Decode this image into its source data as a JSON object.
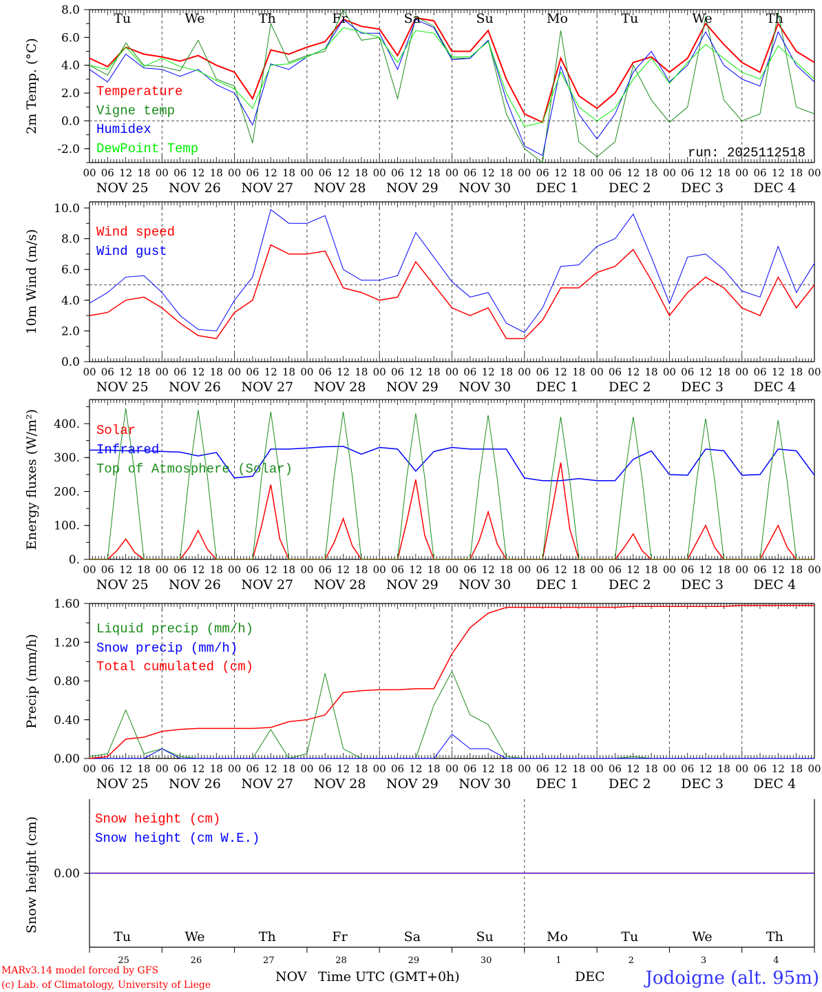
{
  "x_axis": {
    "days": [
      "NOV 25",
      "NOV 26",
      "NOV 27",
      "NOV 28",
      "NOV 29",
      "NOV 30",
      "DEC  1",
      "DEC  2",
      "DEC  3",
      "DEC  4"
    ],
    "day_names": [
      "Tu",
      "We",
      "Th",
      "Fr",
      "Sa",
      "Su",
      "Mo",
      "Tu",
      "We",
      "Th"
    ],
    "weekend_flags": [
      false,
      false,
      false,
      false,
      true,
      true,
      false,
      false,
      false,
      false
    ],
    "hour_ticks": [
      "00",
      "06",
      "12",
      "18"
    ],
    "final_hour_tick": "00",
    "day_numbers": [
      "25",
      "26",
      "27",
      "28",
      "29",
      "30",
      "1",
      "2",
      "3",
      "4"
    ],
    "month_labels": [
      "NOV",
      "DEC"
    ],
    "title": "Time UTC (GMT+0h)",
    "weekday_color": "#000000",
    "weekend_color": "#ff0000"
  },
  "run_label": "run: 2025112518",
  "footer": {
    "model": "MARv3.14 model forced by GFS",
    "credit": "(c) Lab. of Climatology, University of Liege",
    "location": "Jodoigne (alt. 95m)",
    "model_color": "#ff0000",
    "location_color": "#3333ff"
  },
  "chart_data": [
    {
      "type": "line",
      "ylabel": "2m Temp. (°C)",
      "ylim": [
        -3,
        8
      ],
      "yticks": [
        "8.0",
        "6.0",
        "4.0",
        "2.0",
        "0.0",
        "-2.0"
      ],
      "ytick_values": [
        8,
        6,
        4,
        2,
        0,
        -2
      ],
      "reference_line": 0,
      "x_start_hour": 0,
      "x_end_hour": 240,
      "series": [
        {
          "name": "Temperature",
          "color": "#ff0000",
          "width": 2,
          "step_hours": 6,
          "values": [
            4.5,
            3.9,
            5.3,
            4.8,
            4.6,
            4.3,
            4.7,
            4.0,
            3.5,
            1.6,
            5.1,
            4.8,
            5.3,
            5.7,
            7.3,
            6.8,
            6.6,
            4.7,
            7.4,
            7.2,
            5.0,
            5.0,
            6.5,
            3.0,
            0.5,
            -0.1,
            4.5,
            1.8,
            0.9,
            2.0,
            4.2,
            4.6,
            3.5,
            4.5,
            7.0,
            5.5,
            4.2,
            3.5,
            7.0,
            5.0,
            4.2
          ]
        },
        {
          "name": "Vigne temp",
          "color": "#1a8c1a",
          "width": 1,
          "step_hours": 6,
          "values": [
            4.0,
            3.3,
            5.6,
            4.0,
            3.9,
            3.6,
            5.8,
            3.0,
            2.5,
            -1.6,
            7.0,
            4.2,
            4.7,
            5.0,
            8.0,
            5.8,
            6.0,
            1.6,
            7.5,
            6.8,
            4.5,
            4.5,
            5.8,
            0.5,
            -2.0,
            -3.0,
            6.5,
            -1.5,
            -2.6,
            -1.5,
            4.0,
            1.5,
            -0.1,
            1.0,
            7.5,
            1.5,
            0.0,
            0.5,
            7.8,
            1.0,
            0.5
          ]
        },
        {
          "name": "Humidex",
          "color": "#0000ff",
          "width": 1,
          "step_hours": 6,
          "values": [
            3.7,
            2.8,
            4.8,
            3.8,
            3.7,
            3.2,
            3.7,
            2.6,
            2.0,
            -0.3,
            4.1,
            3.7,
            4.6,
            5.2,
            7.3,
            6.3,
            6.3,
            3.7,
            7.3,
            6.7,
            4.4,
            4.5,
            5.8,
            1.5,
            -1.8,
            -2.5,
            3.9,
            0.5,
            -1.3,
            0.5,
            3.5,
            5.0,
            2.8,
            4.0,
            6.4,
            4.0,
            3.0,
            2.5,
            6.4,
            4.0,
            2.8
          ]
        },
        {
          "name": "DewPoint Temp",
          "color": "#00ee00",
          "width": 1,
          "step_hours": 6,
          "values": [
            4.0,
            3.7,
            5.3,
            3.9,
            4.5,
            3.9,
            3.6,
            2.9,
            2.3,
            0.9,
            4.0,
            4.1,
            4.6,
            5.2,
            6.7,
            6.4,
            6.0,
            4.2,
            6.5,
            6.3,
            4.6,
            4.6,
            5.7,
            2.0,
            -0.4,
            -0.1,
            3.5,
            1.0,
            0.0,
            0.9,
            3.0,
            4.5,
            2.7,
            4.2,
            5.5,
            4.5,
            3.5,
            3.0,
            5.4,
            4.2,
            3.0
          ]
        }
      ]
    },
    {
      "type": "line",
      "ylabel": "10m Wind (m/s)",
      "ylim": [
        0,
        10.4
      ],
      "yticks": [
        "10.0",
        "8.0",
        "6.0",
        "4.0",
        "2.0",
        "0.0"
      ],
      "ytick_values": [
        10,
        8,
        6,
        4,
        2,
        0
      ],
      "reference_line": 5,
      "x_start_hour": 0,
      "x_end_hour": 240,
      "series": [
        {
          "name": "Wind speed",
          "color": "#ff0000",
          "width": 1.5,
          "step_hours": 6,
          "values": [
            3.0,
            3.2,
            4.0,
            4.2,
            3.5,
            2.5,
            1.7,
            1.5,
            3.2,
            4.0,
            7.6,
            7.0,
            7.0,
            7.2,
            4.8,
            4.5,
            4.0,
            4.2,
            6.5,
            5.0,
            3.5,
            3.0,
            3.5,
            1.5,
            1.5,
            2.7,
            4.8,
            4.8,
            5.8,
            6.2,
            7.3,
            5.3,
            3.0,
            4.5,
            5.5,
            4.8,
            3.5,
            3.0,
            5.5,
            3.5,
            5.0
          ]
        },
        {
          "name": "Wind gust",
          "color": "#0000ff",
          "width": 1,
          "step_hours": 6,
          "values": [
            3.8,
            4.5,
            5.5,
            5.6,
            4.5,
            3.0,
            2.1,
            2.0,
            4.0,
            5.5,
            9.9,
            9.0,
            9.0,
            9.5,
            6.0,
            5.3,
            5.3,
            5.6,
            8.4,
            6.8,
            5.2,
            4.2,
            4.5,
            2.5,
            1.9,
            3.5,
            6.2,
            6.3,
            7.5,
            8.0,
            9.6,
            6.8,
            3.8,
            6.8,
            7.0,
            6.0,
            4.6,
            4.2,
            7.5,
            4.5,
            6.4
          ]
        }
      ]
    },
    {
      "type": "line",
      "ylabel": "Energy fluxes (W/m²)",
      "ylim": [
        0,
        471
      ],
      "yticks": [
        "400.",
        "300.",
        "200.",
        "100.",
        "0."
      ],
      "ytick_values": [
        400,
        300,
        200,
        100,
        0
      ],
      "x_start_hour": 0,
      "x_end_hour": 240,
      "series": [
        {
          "name": "Solar",
          "color": "#ff0000",
          "width": 1.5,
          "step_hours": 3,
          "values": [
            0,
            0,
            0,
            25,
            60,
            20,
            0,
            0,
            0,
            0,
            0,
            35,
            85,
            30,
            0,
            0,
            0,
            0,
            0,
            100,
            220,
            60,
            0,
            0,
            0,
            0,
            0,
            50,
            120,
            40,
            0,
            0,
            0,
            0,
            0,
            110,
            235,
            70,
            0,
            0,
            0,
            0,
            0,
            55,
            140,
            45,
            0,
            0,
            0,
            0,
            0,
            140,
            285,
            90,
            0,
            0,
            0,
            0,
            0,
            35,
            75,
            25,
            0,
            0,
            0,
            0,
            0,
            50,
            100,
            35,
            0,
            0,
            0,
            0,
            0,
            50,
            100,
            35,
            0,
            0,
            0
          ]
        },
        {
          "name": "Infrared",
          "color": "#0000ff",
          "width": 1.5,
          "step_hours": 6,
          "values": [
            322,
            322,
            320,
            320,
            318,
            316,
            305,
            315,
            240,
            245,
            325,
            325,
            328,
            332,
            333,
            310,
            330,
            325,
            260,
            318,
            330,
            325,
            325,
            325,
            240,
            232,
            232,
            238,
            232,
            232,
            295,
            320,
            250,
            248,
            325,
            320,
            248,
            250,
            325,
            320,
            248
          ]
        },
        {
          "name": "Top of Atmosphere (Solar)",
          "color": "#1a8c1a",
          "width": 1,
          "step_hours": 3,
          "values": [
            0,
            0,
            0,
            250,
            445,
            250,
            0,
            0,
            0,
            0,
            0,
            248,
            440,
            248,
            0,
            0,
            0,
            0,
            0,
            245,
            435,
            245,
            0,
            0,
            0,
            0,
            0,
            245,
            435,
            245,
            0,
            0,
            0,
            0,
            0,
            240,
            430,
            240,
            0,
            0,
            0,
            0,
            0,
            238,
            425,
            238,
            0,
            0,
            0,
            0,
            0,
            235,
            420,
            235,
            0,
            0,
            0,
            0,
            0,
            235,
            420,
            235,
            0,
            0,
            0,
            0,
            0,
            232,
            415,
            232,
            0,
            0,
            0,
            0,
            0,
            230,
            410,
            230,
            0,
            0,
            0
          ]
        }
      ]
    },
    {
      "type": "line",
      "ylabel": "Precip (mm/h)",
      "ylim": [
        0,
        1.6
      ],
      "yticks": [
        "1.60",
        "1.20",
        "0.80",
        "0.40",
        "0.00"
      ],
      "ytick_values": [
        1.6,
        1.2,
        0.8,
        0.4,
        0
      ],
      "x_start_hour": 0,
      "x_end_hour": 240,
      "series": [
        {
          "name": "Liquid precip (mm/h)",
          "color": "#1a8c1a",
          "width": 1,
          "step_hours": 6,
          "values": [
            0.02,
            0.05,
            0.5,
            0.05,
            0.1,
            0.02,
            0,
            0,
            0,
            0,
            0.3,
            0,
            0.05,
            0.88,
            0.1,
            0,
            0,
            0,
            0,
            0.55,
            0.9,
            0.45,
            0.35,
            0.02,
            0,
            0,
            0,
            0,
            0,
            0,
            0.02,
            0,
            0,
            0,
            0,
            0,
            0,
            0,
            0,
            0,
            0
          ]
        },
        {
          "name": "Snow precip (mm/h)",
          "color": "#0000ff",
          "width": 1,
          "step_hours": 6,
          "values": [
            0,
            0,
            0,
            0,
            0.1,
            0,
            0,
            0,
            0,
            0,
            0,
            0,
            0,
            0,
            0,
            0,
            0,
            0,
            0,
            0,
            0.25,
            0.1,
            0.1,
            0,
            0,
            0,
            0,
            0,
            0,
            0,
            0,
            0,
            0,
            0,
            0,
            0,
            0,
            0,
            0,
            0,
            0
          ]
        },
        {
          "name": "Total cumulated (cm)",
          "color": "#ff0000",
          "width": 1.5,
          "step_hours": 6,
          "values": [
            0,
            0.02,
            0.2,
            0.22,
            0.28,
            0.3,
            0.31,
            0.31,
            0.31,
            0.31,
            0.32,
            0.38,
            0.4,
            0.45,
            0.68,
            0.7,
            0.71,
            0.71,
            0.72,
            0.72,
            1.08,
            1.35,
            1.5,
            1.56,
            1.56,
            1.56,
            1.56,
            1.56,
            1.56,
            1.56,
            1.57,
            1.57,
            1.57,
            1.57,
            1.57,
            1.57,
            1.58,
            1.58,
            1.58,
            1.58,
            1.58
          ]
        }
      ]
    },
    {
      "type": "line",
      "ylabel": "Snow height (cm)",
      "ylim": [
        -1,
        1
      ],
      "yticks": [
        "0.00"
      ],
      "ytick_values": [
        0
      ],
      "x_start_hour": 0,
      "x_end_hour": 240,
      "series": [
        {
          "name": "Snow height (cm)",
          "color": "#ff0000",
          "width": 1.5,
          "step_hours": 240,
          "values": [
            0,
            0
          ]
        },
        {
          "name": "Snow height (cm W.E.)",
          "color": "#0000ff",
          "width": 1,
          "step_hours": 240,
          "values": [
            0,
            0
          ],
          "hidden_under_red": true
        }
      ]
    }
  ]
}
